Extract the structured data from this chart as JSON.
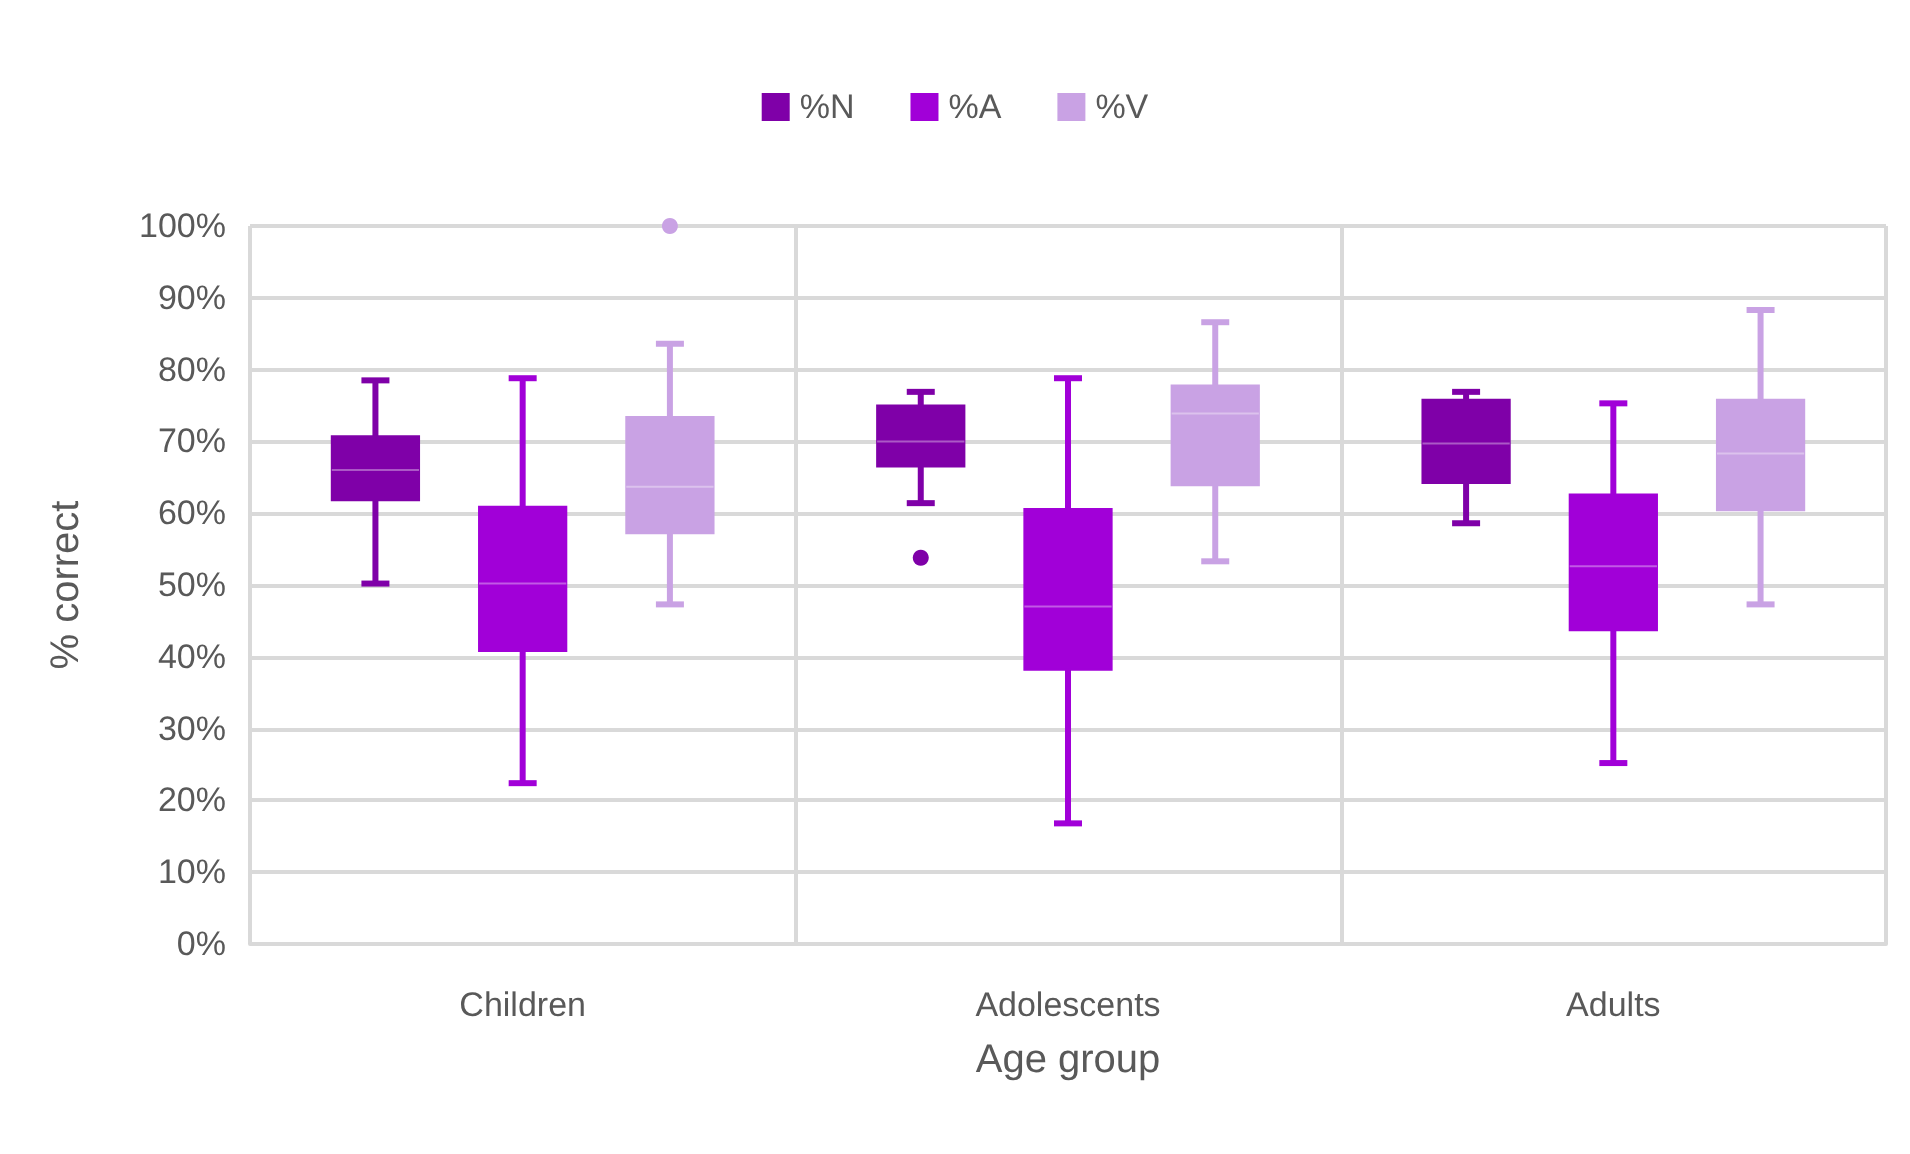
{
  "chart_data": {
    "type": "box",
    "xlabel": "Age group",
    "ylabel": "% correct",
    "categories": [
      "Children",
      "Adolescents",
      "Adults"
    ],
    "ylim": [
      0,
      100
    ],
    "yticks": [
      {
        "value": 0,
        "label": "0%"
      },
      {
        "value": 10,
        "label": "10%"
      },
      {
        "value": 20,
        "label": "20%"
      },
      {
        "value": 30,
        "label": "30%"
      },
      {
        "value": 40,
        "label": "40%"
      },
      {
        "value": 50,
        "label": "50%"
      },
      {
        "value": 60,
        "label": "60%"
      },
      {
        "value": 70,
        "label": "70%"
      },
      {
        "value": 80,
        "label": "80%"
      },
      {
        "value": 90,
        "label": "90%"
      },
      {
        "value": 100,
        "label": "100%"
      }
    ],
    "grid": true,
    "legend": "top",
    "series": [
      {
        "name": "%N",
        "color": "#7f00a8",
        "boxes": [
          {
            "low": 50.2,
            "q1": 61.8,
            "median": 66,
            "q3": 70.7,
            "high": 78.5
          },
          {
            "low": 61.4,
            "q1": 66.5,
            "median": 70,
            "q3": 75,
            "high": 76.9,
            "outliers": [
              53.8
            ]
          },
          {
            "low": 58.6,
            "q1": 64.2,
            "median": 69.7,
            "q3": 75.8,
            "high": 76.9
          }
        ]
      },
      {
        "name": "%A",
        "color": "#a100d8",
        "boxes": [
          {
            "low": 22.4,
            "q1": 40.8,
            "median": 50.2,
            "q3": 60.9,
            "high": 78.8
          },
          {
            "low": 16.8,
            "q1": 38.2,
            "median": 47,
            "q3": 60.6,
            "high": 78.8
          },
          {
            "low": 25.2,
            "q1": 43.7,
            "median": 52.6,
            "q3": 62.6,
            "high": 75.3
          }
        ]
      },
      {
        "name": "%V",
        "color": "#c9a2e4",
        "boxes": [
          {
            "low": 47.3,
            "q1": 57.2,
            "median": 63.7,
            "q3": 73.4,
            "high": 83.6,
            "outliers": [
              100
            ]
          },
          {
            "low": 53.3,
            "q1": 63.9,
            "median": 73.9,
            "q3": 77.8,
            "high": 86.6
          },
          {
            "low": 47.3,
            "q1": 60.4,
            "median": 68.3,
            "q3": 75.8,
            "high": 88.3
          }
        ]
      }
    ]
  }
}
